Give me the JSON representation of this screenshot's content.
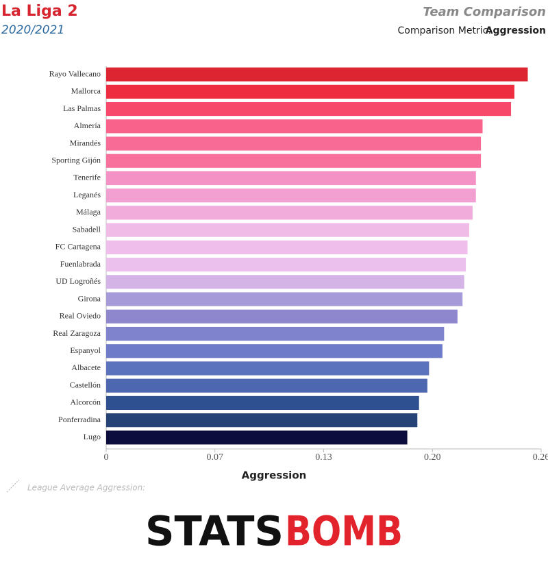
{
  "chart_data": {
    "type": "bar",
    "orientation": "horizontal",
    "title": "La Liga 2",
    "subtitle": "2020/2021",
    "header_right": "Team Comparison",
    "metric_label": "Comparison Metric:",
    "metric": "Aggression",
    "x_label": "Aggression",
    "legend_text": "League Average Aggression:",
    "logo": {
      "left": "STATS",
      "right": "BOMB"
    },
    "categories": [
      "Rayo Vallecano",
      "Mallorca",
      "Las Palmas",
      "Almería",
      "Mirandés",
      "Sporting Gijón",
      "Tenerife",
      "Leganés",
      "Málaga",
      "Sabadell",
      "FC Cartagena",
      "Fuenlabrada",
      "UD Logroñés",
      "Girona",
      "Real Oviedo",
      "Real Zaragoza",
      "Espanyol",
      "Albacete",
      "Castellón",
      "Alcorcón",
      "Ponferradina",
      "Lugo"
    ],
    "values": [
      0.252,
      0.244,
      0.242,
      0.225,
      0.224,
      0.224,
      0.221,
      0.221,
      0.219,
      0.217,
      0.216,
      0.215,
      0.214,
      0.213,
      0.21,
      0.202,
      0.201,
      0.193,
      0.192,
      0.187,
      0.186,
      0.18
    ],
    "colors": [
      "#dc2530",
      "#ef2d40",
      "#f74a6a",
      "#f9628a",
      "#f86b96",
      "#f8719c",
      "#f491c5",
      "#f29fd1",
      "#f1acdc",
      "#f0bbe6",
      "#efbeea",
      "#ecc0ed",
      "#d4b3e6",
      "#a79ad8",
      "#8e87cd",
      "#7f82cd",
      "#6e7bc8",
      "#5b72bd",
      "#4d68b0",
      "#2f5090",
      "#264377",
      "#0c0d3d"
    ],
    "xlim": [
      0,
      0.26
    ],
    "xticks": [
      0,
      {
        "value": 0.065,
        "label": "0.07"
      },
      0.13,
      {
        "value": 0.195,
        "label": "0.20"
      },
      0.26
    ]
  }
}
